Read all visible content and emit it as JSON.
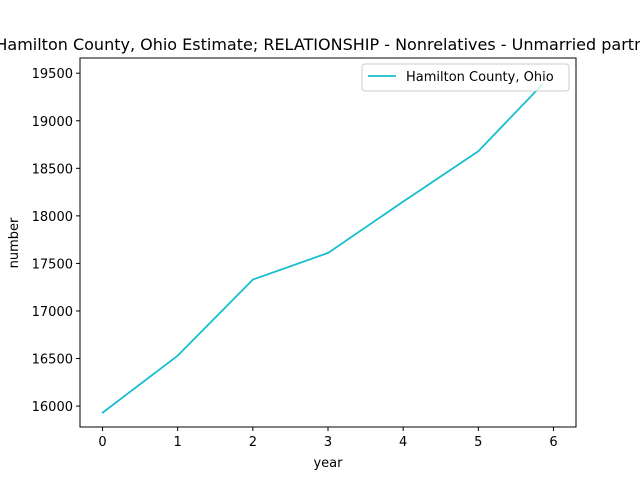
{
  "chart_data": {
    "type": "line",
    "title": "Hamilton County, Ohio Estimate; RELATIONSHIP - Nonrelatives - Unmarried partner",
    "xlabel": "year",
    "ylabel": "number",
    "x": [
      0,
      1,
      2,
      3,
      4,
      5,
      6
    ],
    "xticks": [
      "0",
      "1",
      "2",
      "3",
      "4",
      "5",
      "6"
    ],
    "yticks": [
      "16000",
      "16500",
      "17000",
      "17500",
      "18000",
      "18500",
      "19000",
      "19500"
    ],
    "xlim": [
      -0.3,
      6.3
    ],
    "ylim": [
      15780,
      19660
    ],
    "series": [
      {
        "name": "Hamilton County, Ohio",
        "color": "#17becf",
        "x": [
          0,
          1,
          2,
          3,
          4,
          5,
          5.85
        ],
        "values": [
          15930,
          16530,
          17330,
          17610,
          18150,
          18680,
          19380
        ]
      }
    ],
    "legend_position": "top-right",
    "grid": false
  }
}
